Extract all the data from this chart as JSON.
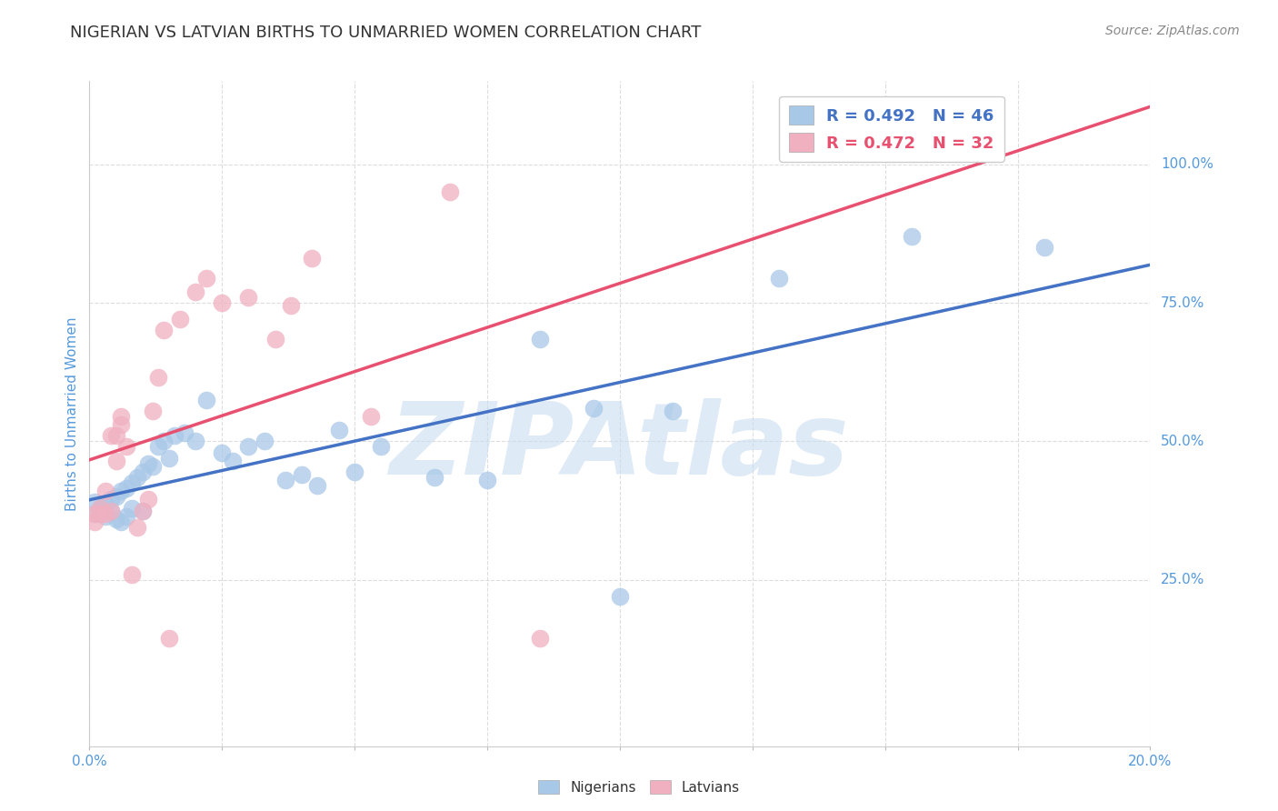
{
  "title": "NIGERIAN VS LATVIAN BIRTHS TO UNMARRIED WOMEN CORRELATION CHART",
  "source_text": "Source: ZipAtlas.com",
  "ylabel": "Births to Unmarried Women",
  "xlim": [
    0.0,
    0.2
  ],
  "ylim": [
    -0.05,
    1.15
  ],
  "xtick_positions": [
    0.0,
    0.025,
    0.05,
    0.075,
    0.1,
    0.125,
    0.15,
    0.175,
    0.2
  ],
  "xticklabels": [
    "0.0%",
    "",
    "",
    "",
    "",
    "",
    "",
    "",
    "20.0%"
  ],
  "ytick_positions": [
    0.25,
    0.5,
    0.75,
    1.0
  ],
  "yticklabels": [
    "25.0%",
    "50.0%",
    "75.0%",
    "100.0%"
  ],
  "blue_color": "#A8C8E8",
  "pink_color": "#F0B0C0",
  "blue_line_color": "#4472C4",
  "pink_line_color": "#E85070",
  "R_blue": 0.492,
  "N_blue": 46,
  "R_pink": 0.472,
  "N_pink": 32,
  "watermark": "ZIPAtlas",
  "watermark_color": "#C8DCF0",
  "legend_label_blue": "Nigerians",
  "legend_label_pink": "Latvians",
  "blue_dots_x": [
    0.001,
    0.001,
    0.002,
    0.003,
    0.003,
    0.004,
    0.004,
    0.005,
    0.005,
    0.006,
    0.006,
    0.007,
    0.007,
    0.008,
    0.008,
    0.009,
    0.01,
    0.01,
    0.011,
    0.012,
    0.013,
    0.014,
    0.015,
    0.016,
    0.018,
    0.02,
    0.022,
    0.025,
    0.027,
    0.03,
    0.033,
    0.037,
    0.04,
    0.043,
    0.047,
    0.05,
    0.055,
    0.065,
    0.075,
    0.085,
    0.095,
    0.1,
    0.11,
    0.13,
    0.155,
    0.18
  ],
  "blue_dots_y": [
    0.37,
    0.39,
    0.38,
    0.365,
    0.385,
    0.375,
    0.395,
    0.36,
    0.4,
    0.355,
    0.41,
    0.365,
    0.415,
    0.38,
    0.425,
    0.435,
    0.375,
    0.445,
    0.46,
    0.455,
    0.49,
    0.5,
    0.47,
    0.51,
    0.515,
    0.5,
    0.575,
    0.48,
    0.465,
    0.49,
    0.5,
    0.43,
    0.44,
    0.42,
    0.52,
    0.445,
    0.49,
    0.435,
    0.43,
    0.685,
    0.56,
    0.22,
    0.555,
    0.795,
    0.87,
    0.85
  ],
  "pink_dots_x": [
    0.001,
    0.001,
    0.002,
    0.002,
    0.003,
    0.003,
    0.004,
    0.004,
    0.005,
    0.005,
    0.006,
    0.006,
    0.007,
    0.008,
    0.009,
    0.01,
    0.011,
    0.012,
    0.013,
    0.014,
    0.015,
    0.017,
    0.02,
    0.022,
    0.025,
    0.03,
    0.035,
    0.038,
    0.042,
    0.053,
    0.068,
    0.085
  ],
  "pink_dots_y": [
    0.355,
    0.37,
    0.37,
    0.38,
    0.37,
    0.41,
    0.375,
    0.51,
    0.465,
    0.51,
    0.53,
    0.545,
    0.49,
    0.26,
    0.345,
    0.375,
    0.395,
    0.555,
    0.615,
    0.7,
    0.145,
    0.72,
    0.77,
    0.795,
    0.75,
    0.76,
    0.685,
    0.745,
    0.83,
    0.545,
    0.95,
    0.145
  ],
  "grid_color": "#DDDDDD",
  "background_color": "#FFFFFF",
  "title_color": "#333333",
  "axis_label_color": "#5599DD",
  "tick_label_color": "#5599DD"
}
